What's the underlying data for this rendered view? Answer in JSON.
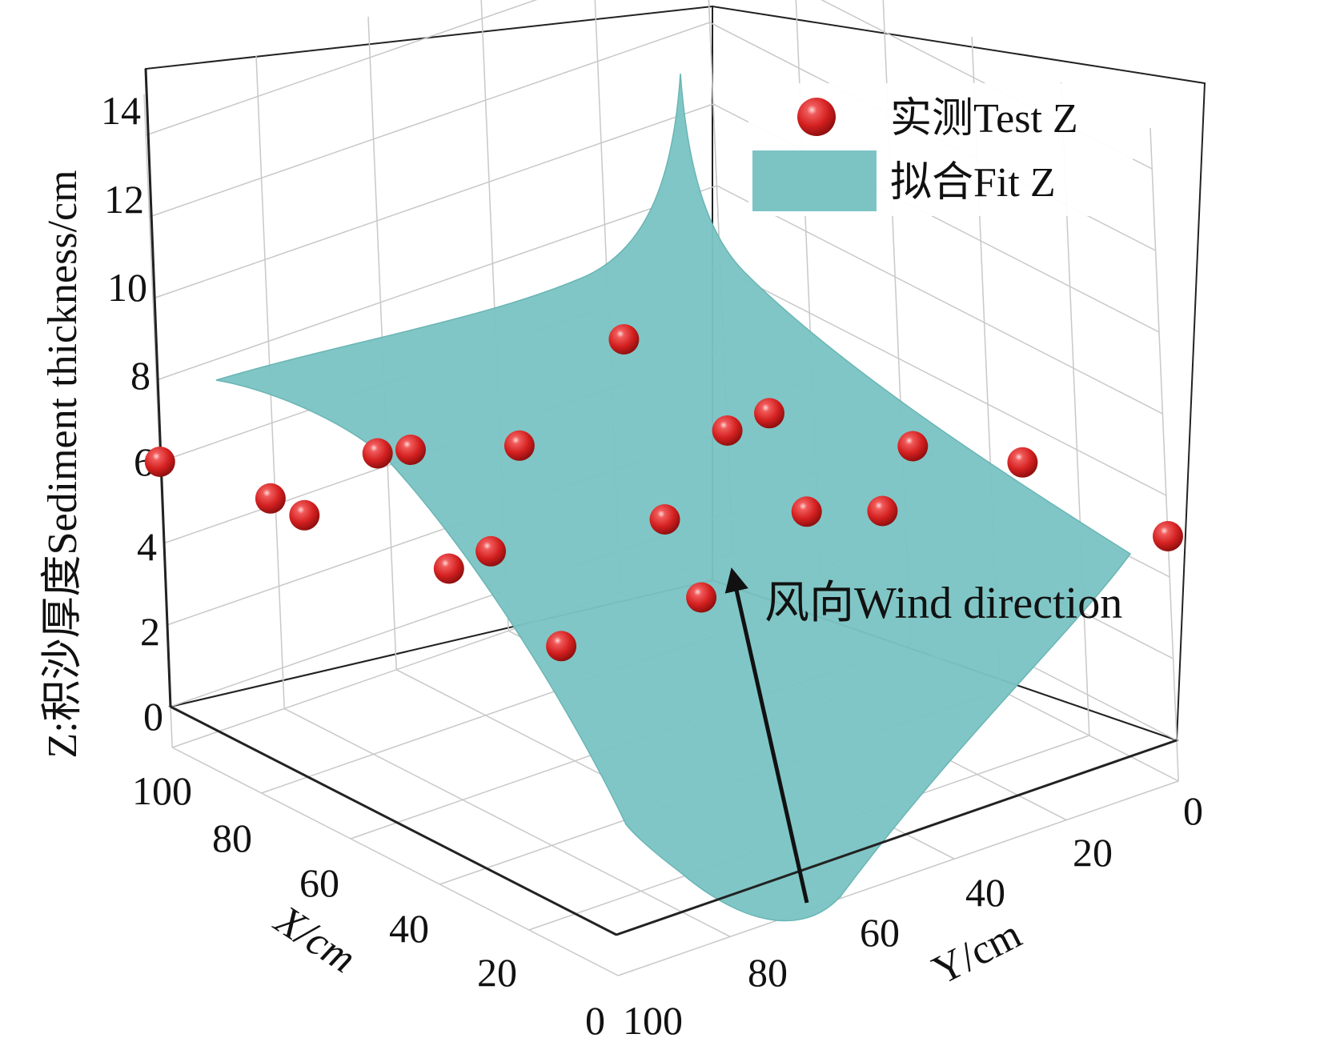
{
  "chart_data": {
    "type": "surface3d",
    "title": "",
    "xlabel": "X/cm",
    "ylabel": "Y/cm",
    "zlabel": "Z:积沙厚度Sediment thickness/cm",
    "xlim": [
      0,
      100
    ],
    "ylim": [
      0,
      100
    ],
    "zlim": [
      -1,
      15
    ],
    "x_ticks": [
      "0",
      "20",
      "40",
      "60",
      "80",
      "100"
    ],
    "y_ticks": [
      "0",
      "20",
      "40",
      "60",
      "80",
      "100"
    ],
    "z_ticks": [
      "0",
      "2",
      "4",
      "6",
      "8",
      "10",
      "12",
      "14"
    ],
    "grid": true,
    "legend_position": "top-right",
    "series": [
      {
        "name": "实测Test Z",
        "type": "scatter",
        "color": "#d42020",
        "points": [
          {
            "x": 100,
            "y": 100,
            "z": 6.0
          },
          {
            "x": 75,
            "y": 100,
            "z": 6.5
          },
          {
            "x": 50,
            "y": 100,
            "z": 9.0
          },
          {
            "x": 25,
            "y": 100,
            "z": 8.0
          },
          {
            "x": 100,
            "y": 75,
            "z": 3.5
          },
          {
            "x": 75,
            "y": 75,
            "z": 6.5
          },
          {
            "x": 50,
            "y": 75,
            "z": 8.0
          },
          {
            "x": 25,
            "y": 75,
            "z": 12.0
          },
          {
            "x": 100,
            "y": 50,
            "z": 1.0
          },
          {
            "x": 75,
            "y": 50,
            "z": 0.5
          },
          {
            "x": 50,
            "y": 50,
            "z": 5.0
          },
          {
            "x": 25,
            "y": 50,
            "z": 9.0
          },
          {
            "x": 0,
            "y": 50,
            "z": 8.0
          },
          {
            "x": 75,
            "y": 25,
            "z": 0.5
          },
          {
            "x": 50,
            "y": 25,
            "z": 4.0
          },
          {
            "x": 25,
            "y": 25,
            "z": 7.0
          },
          {
            "x": 0,
            "y": 25,
            "z": 8.0
          },
          {
            "x": 100,
            "y": 0,
            "z": 2.0
          },
          {
            "x": 0,
            "y": 0,
            "z": 5.0
          }
        ]
      },
      {
        "name": "拟合Fit Z",
        "type": "surface",
        "color": "#7cc4c4"
      }
    ],
    "annotations": [
      {
        "text": "风向Wind direction",
        "type": "arrow"
      }
    ]
  }
}
